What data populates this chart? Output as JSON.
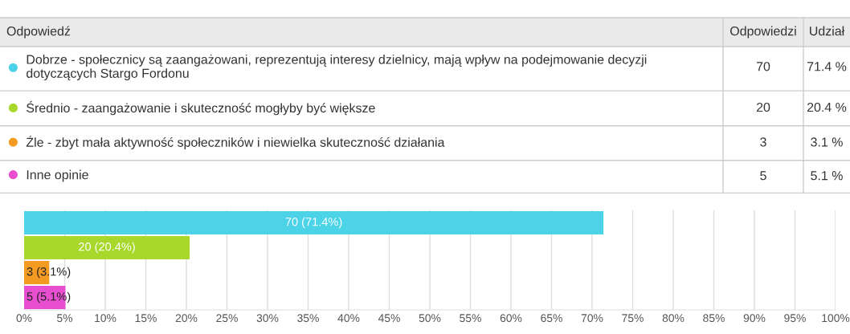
{
  "chart_data": {
    "type": "bar",
    "orientation": "horizontal",
    "categories": [
      null,
      null,
      null,
      null
    ],
    "series": [
      {
        "name": "Dobrze - społecznicy są zaangażowani, reprezentują interesy dzielnicy, mają wpływ na podejmowanie decyzji dotyczących Stargo Fordonu",
        "color": "#4dd3e8",
        "values": [
          71.4,
          null,
          null,
          null
        ],
        "value_labels": [
          "70 (71.4%)",
          null,
          null,
          null
        ]
      },
      {
        "name": "Średnio - zaangażowanie i skuteczność mogłyby być większe",
        "color": "#a8d82c",
        "values": [
          null,
          20.4,
          null,
          null
        ],
        "value_labels": [
          null,
          "20 (20.4%)",
          null,
          null
        ]
      },
      {
        "name": "Źle - zbyt mała aktywność społeczników i niewielka skuteczność działania",
        "color": "#f39a22",
        "values": [
          null,
          null,
          3.1,
          null
        ],
        "value_labels": [
          null,
          null,
          "3 (3.1%)",
          null
        ]
      },
      {
        "name": "Inne opinie",
        "color": "#e84fd0",
        "values": [
          null,
          null,
          null,
          5.1
        ],
        "value_labels": [
          null,
          null,
          null,
          "5 (5.1%)"
        ]
      }
    ],
    "xlim": [
      0,
      100
    ],
    "xticks": [
      {
        "value": 0,
        "label": "0%"
      },
      {
        "value": 5,
        "label": "5%"
      },
      {
        "value": 10,
        "label": "10%"
      },
      {
        "value": 15,
        "label": "15%"
      },
      {
        "value": 20,
        "label": "20%"
      },
      {
        "value": 25,
        "label": "25%"
      },
      {
        "value": 30,
        "label": "30%"
      },
      {
        "value": 35,
        "label": "35%"
      },
      {
        "value": 40,
        "label": "40%"
      },
      {
        "value": 45,
        "label": "45%"
      },
      {
        "value": 50,
        "label": "50%"
      },
      {
        "value": 55,
        "label": "55%"
      },
      {
        "value": 60,
        "label": "60%"
      },
      {
        "value": 65,
        "label": "65%"
      },
      {
        "value": 70,
        "label": "70%"
      },
      {
        "value": 75,
        "label": "75%"
      },
      {
        "value": 80,
        "label": "80%"
      },
      {
        "value": 85,
        "label": "85%"
      },
      {
        "value": 90,
        "label": "90%"
      },
      {
        "value": 95,
        "label": "95%"
      },
      {
        "value": 100,
        "label": "100%"
      }
    ],
    "grid": "x",
    "tick_labels": "x",
    "legend": "top",
    "annotations": [
      "Odpowiedź",
      "Odpowiedzi",
      "Udział",
      "70",
      "71.4 %",
      "20",
      "20.4 %",
      "3",
      "3.1 %",
      "5",
      "5.1 %"
    ]
  }
}
